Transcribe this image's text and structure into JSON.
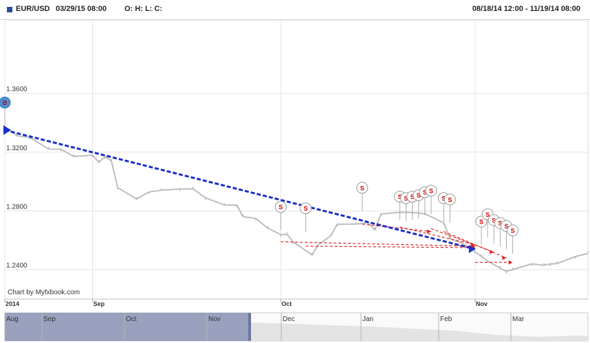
{
  "header": {
    "symbol": "EUR/USD",
    "date": "03/29/15 08:00",
    "ohlc": "O: H: L: C:",
    "range": "08/18/14 12:00 - 11/19/14 08:00"
  },
  "watermark": "Chart by Myfxbook.com",
  "colors": {
    "price": "#bdbdbd",
    "trend": "#1a2ecc",
    "trade_link": "#e02020",
    "grid": "#e4e4e4",
    "navigator_fill": "#8791b4",
    "buy_marker": "#4a90d9"
  },
  "chart_data": {
    "type": "line",
    "ylim": [
      1.22,
      1.41
    ],
    "yticks": [
      "1.2400",
      "1.2800",
      "1.3200",
      "1.3600"
    ],
    "xticks": [
      {
        "label": "2014",
        "x": "2014-08-18"
      },
      {
        "label": "Sep",
        "x": "2014-09-01"
      },
      {
        "label": "Oct",
        "x": "2014-10-01"
      },
      {
        "label": "Nov",
        "x": "2014-11-01"
      }
    ],
    "xrange": [
      "2014-08-18",
      "2014-11-19"
    ],
    "series": [
      {
        "points": [
          [
            "2014-08-18",
            1.336
          ],
          [
            "2014-08-20",
            1.332
          ],
          [
            "2014-08-22",
            1.329
          ],
          [
            "2014-08-25",
            1.323
          ],
          [
            "2014-08-27",
            1.321
          ],
          [
            "2014-08-29",
            1.318
          ],
          [
            "2014-09-01",
            1.317
          ],
          [
            "2014-09-02",
            1.314
          ],
          [
            "2014-09-03",
            1.316
          ],
          [
            "2014-09-04",
            1.315
          ],
          [
            "2014-09-05",
            1.295
          ],
          [
            "2014-09-08",
            1.289
          ],
          [
            "2014-09-10",
            1.292
          ],
          [
            "2014-09-12",
            1.295
          ],
          [
            "2014-09-15",
            1.294
          ],
          [
            "2014-09-17",
            1.296
          ],
          [
            "2014-09-19",
            1.288
          ],
          [
            "2014-09-22",
            1.285
          ],
          [
            "2014-09-24",
            1.283
          ],
          [
            "2014-09-25",
            1.277
          ],
          [
            "2014-09-27",
            1.274
          ],
          [
            "2014-09-29",
            1.269
          ],
          [
            "2014-10-01",
            1.263
          ],
          [
            "2014-10-02",
            1.265
          ],
          [
            "2014-10-03",
            1.258
          ],
          [
            "2014-10-06",
            1.251
          ],
          [
            "2014-10-07",
            1.256
          ],
          [
            "2014-10-09",
            1.264
          ],
          [
            "2014-10-10",
            1.27
          ],
          [
            "2014-10-13",
            1.272
          ],
          [
            "2014-10-15",
            1.271
          ],
          [
            "2014-10-16",
            1.268
          ],
          [
            "2014-10-17",
            1.277
          ],
          [
            "2014-10-20",
            1.28
          ],
          [
            "2014-10-22",
            1.278
          ],
          [
            "2014-10-24",
            1.279
          ],
          [
            "2014-10-27",
            1.271
          ],
          [
            "2014-10-28",
            1.262
          ],
          [
            "2014-10-30",
            1.257
          ],
          [
            "2014-11-02",
            1.25
          ],
          [
            "2014-11-03",
            1.245
          ],
          [
            "2014-11-05",
            1.242
          ],
          [
            "2014-11-06",
            1.238
          ],
          [
            "2014-11-07",
            1.241
          ],
          [
            "2014-11-10",
            1.243
          ],
          [
            "2014-11-12",
            1.244
          ],
          [
            "2014-11-13",
            1.243
          ],
          [
            "2014-11-14",
            1.245
          ],
          [
            "2014-11-17",
            1.248
          ],
          [
            "2014-11-19",
            1.252
          ]
        ]
      }
    ],
    "trend_line": {
      "from": [
        "2014-08-18",
        1.335
      ],
      "to": [
        "2014-11-01",
        1.254
      ]
    },
    "trade_markers": [
      {
        "label": "B",
        "x": "2014-08-18",
        "y": 1.336
      },
      {
        "label": "S",
        "x": "2014-10-01",
        "y": 1.265
      },
      {
        "label": "S",
        "x": "2014-10-05",
        "y": 1.264
      },
      {
        "label": "S",
        "x": "2014-10-14",
        "y": 1.278
      },
      {
        "label": "S",
        "x": "2014-10-20",
        "y": 1.272
      },
      {
        "label": "S",
        "x": "2014-10-21",
        "y": 1.271
      },
      {
        "label": "S",
        "x": "2014-10-22",
        "y": 1.272
      },
      {
        "label": "S",
        "x": "2014-10-23",
        "y": 1.273
      },
      {
        "label": "S",
        "x": "2014-10-24",
        "y": 1.275
      },
      {
        "label": "S",
        "x": "2014-10-25",
        "y": 1.276
      },
      {
        "label": "S",
        "x": "2014-10-27",
        "y": 1.271
      },
      {
        "label": "S",
        "x": "2014-10-28",
        "y": 1.27
      },
      {
        "label": "S",
        "x": "2014-11-02",
        "y": 1.255
      },
      {
        "label": "S",
        "x": "2014-11-03",
        "y": 1.26
      },
      {
        "label": "S",
        "x": "2014-11-04",
        "y": 1.256
      },
      {
        "label": "S",
        "x": "2014-11-05",
        "y": 1.254
      },
      {
        "label": "S",
        "x": "2014-11-06",
        "y": 1.252
      },
      {
        "label": "S",
        "x": "2014-11-07",
        "y": 1.249
      }
    ],
    "trade_links": [
      {
        "from": [
          "2014-10-01",
          1.259
        ],
        "to": [
          "2014-11-01",
          1.256
        ]
      },
      {
        "from": [
          "2014-10-05",
          1.256
        ],
        "to": [
          "2014-11-01",
          1.255
        ]
      },
      {
        "from": [
          "2014-10-14",
          1.271
        ],
        "to": [
          "2014-10-25",
          1.266
        ]
      },
      {
        "from": [
          "2014-10-20",
          1.269
        ],
        "to": [
          "2014-11-01",
          1.257
        ]
      },
      {
        "from": [
          "2014-10-25",
          1.268
        ],
        "to": [
          "2014-11-04",
          1.252
        ]
      },
      {
        "from": [
          "2014-10-27",
          1.266
        ],
        "to": [
          "2014-11-06",
          1.248
        ]
      },
      {
        "from": [
          "2014-11-01",
          1.245
        ],
        "to": [
          "2014-11-07",
          1.245
        ]
      }
    ]
  },
  "navigator": {
    "labels": [
      "Aug",
      "Sep",
      "Oct",
      "Nov",
      "Dec",
      "Jan",
      "Feb",
      "Mar"
    ]
  }
}
